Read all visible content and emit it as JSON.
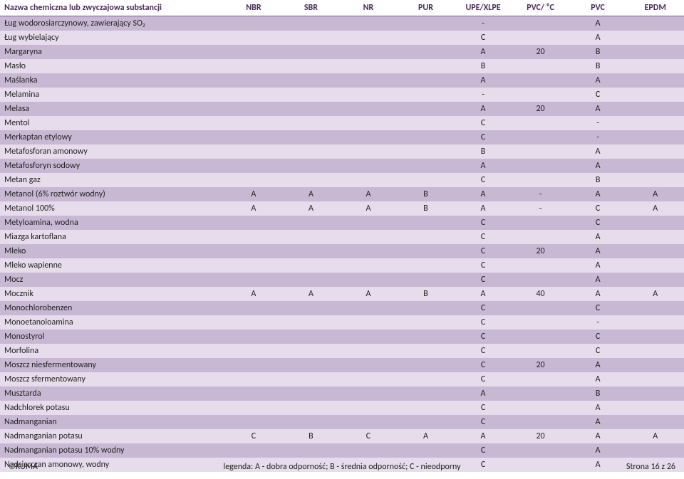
{
  "table": {
    "header_text_color": "#4a2c5a",
    "header_border_color": "#7a5a8a",
    "band_dark": "#c9b8d4",
    "band_light": "#e6dceb",
    "name_col_width": 290,
    "data_col_width": 74,
    "font_size": 12,
    "columns": [
      "Nazwa chemiczna lub zwyczajowa substancji",
      "NBR",
      "SBR",
      "NR",
      "PUR",
      "UPE/XLPE",
      "PVC/ ⁰C",
      "PVC",
      "EPDM"
    ],
    "rows": [
      {
        "name": "Ług wodorosiarczynowy, zawierający SO₂",
        "vals": [
          "",
          "",
          "",
          "",
          "-",
          "",
          "A",
          ""
        ]
      },
      {
        "name": "Ług wybielający",
        "vals": [
          "",
          "",
          "",
          "",
          "C",
          "",
          "A",
          ""
        ]
      },
      {
        "name": "Margaryna",
        "vals": [
          "",
          "",
          "",
          "",
          "A",
          "20",
          "B",
          ""
        ]
      },
      {
        "name": "Masło",
        "vals": [
          "",
          "",
          "",
          "",
          "B",
          "",
          "B",
          ""
        ]
      },
      {
        "name": "Maślanka",
        "vals": [
          "",
          "",
          "",
          "",
          "A",
          "",
          "A",
          ""
        ]
      },
      {
        "name": "Melamina",
        "vals": [
          "",
          "",
          "",
          "",
          "-",
          "",
          "C",
          ""
        ]
      },
      {
        "name": "Melasa",
        "vals": [
          "",
          "",
          "",
          "",
          "A",
          "20",
          "A",
          ""
        ]
      },
      {
        "name": "Mentol",
        "vals": [
          "",
          "",
          "",
          "",
          "C",
          "",
          "-",
          ""
        ]
      },
      {
        "name": "Merkaptan etylowy",
        "vals": [
          "",
          "",
          "",
          "",
          "C",
          "",
          "-",
          ""
        ]
      },
      {
        "name": "Metafosforan amonowy",
        "vals": [
          "",
          "",
          "",
          "",
          "B",
          "",
          "A",
          ""
        ]
      },
      {
        "name": "Metafosforyn sodowy",
        "vals": [
          "",
          "",
          "",
          "",
          "A",
          "",
          "A",
          ""
        ]
      },
      {
        "name": "Metan gaz",
        "vals": [
          "",
          "",
          "",
          "",
          "C",
          "",
          "B",
          ""
        ]
      },
      {
        "name": "Metanol (6% roztwór wodny)",
        "vals": [
          "A",
          "A",
          "A",
          "B",
          "A",
          "-",
          "A",
          "A"
        ]
      },
      {
        "name": "Metanol 100%",
        "vals": [
          "A",
          "A",
          "A",
          "B",
          "A",
          "-",
          "C",
          "A"
        ]
      },
      {
        "name": "Metyloamina, wodna",
        "vals": [
          "",
          "",
          "",
          "",
          "C",
          "",
          "C",
          ""
        ]
      },
      {
        "name": "Miazga kartoflana",
        "vals": [
          "",
          "",
          "",
          "",
          "C",
          "",
          "A",
          ""
        ]
      },
      {
        "name": "Mleko",
        "vals": [
          "",
          "",
          "",
          "",
          "C",
          "20",
          "A",
          ""
        ]
      },
      {
        "name": "Mleko wapienne",
        "vals": [
          "",
          "",
          "",
          "",
          "C",
          "",
          "A",
          ""
        ]
      },
      {
        "name": "Mocz",
        "vals": [
          "",
          "",
          "",
          "",
          "C",
          "",
          "A",
          ""
        ]
      },
      {
        "name": "Mocznik",
        "vals": [
          "A",
          "A",
          "A",
          "B",
          "A",
          "40",
          "A",
          "A"
        ]
      },
      {
        "name": "Monochlorobenzen",
        "vals": [
          "",
          "",
          "",
          "",
          "C",
          "",
          "C",
          ""
        ]
      },
      {
        "name": "Monoetanoloamina",
        "vals": [
          "",
          "",
          "",
          "",
          "C",
          "",
          "-",
          ""
        ]
      },
      {
        "name": "Monostyrol",
        "vals": [
          "",
          "",
          "",
          "",
          "C",
          "",
          "C",
          ""
        ]
      },
      {
        "name": "Morfolina",
        "vals": [
          "",
          "",
          "",
          "",
          "C",
          "",
          "C",
          ""
        ]
      },
      {
        "name": "Moszcz niesfermentowany",
        "vals": [
          "",
          "",
          "",
          "",
          "C",
          "20",
          "A",
          ""
        ]
      },
      {
        "name": "Moszcz sfermentowany",
        "vals": [
          "",
          "",
          "",
          "",
          "C",
          "",
          "A",
          ""
        ]
      },
      {
        "name": "Musztarda",
        "vals": [
          "",
          "",
          "",
          "",
          "A",
          "",
          "B",
          ""
        ]
      },
      {
        "name": "Nadchlorek potasu",
        "vals": [
          "",
          "",
          "",
          "",
          "C",
          "",
          "A",
          ""
        ]
      },
      {
        "name": "Nadmanganian",
        "vals": [
          "",
          "",
          "",
          "",
          "C",
          "",
          "A",
          ""
        ]
      },
      {
        "name": "Nadmanganian potasu",
        "vals": [
          "C",
          "B",
          "C",
          "A",
          "A",
          "20",
          "A",
          "A"
        ]
      },
      {
        "name": "Nadmanganian potasu 10% wodny",
        "vals": [
          "",
          "",
          "",
          "",
          "C",
          "",
          "A",
          ""
        ]
      },
      {
        "name": "Nadsiarczan amonowy, wodny",
        "vals": [
          "",
          "",
          "",
          "",
          "C",
          "",
          "A",
          ""
        ]
      }
    ]
  },
  "footer": {
    "left": "©KUMA",
    "center": "legenda:  A - dobra odporność;   B - średnia odporność;   C - nieodporny",
    "right": "Strona 16 z 26"
  }
}
